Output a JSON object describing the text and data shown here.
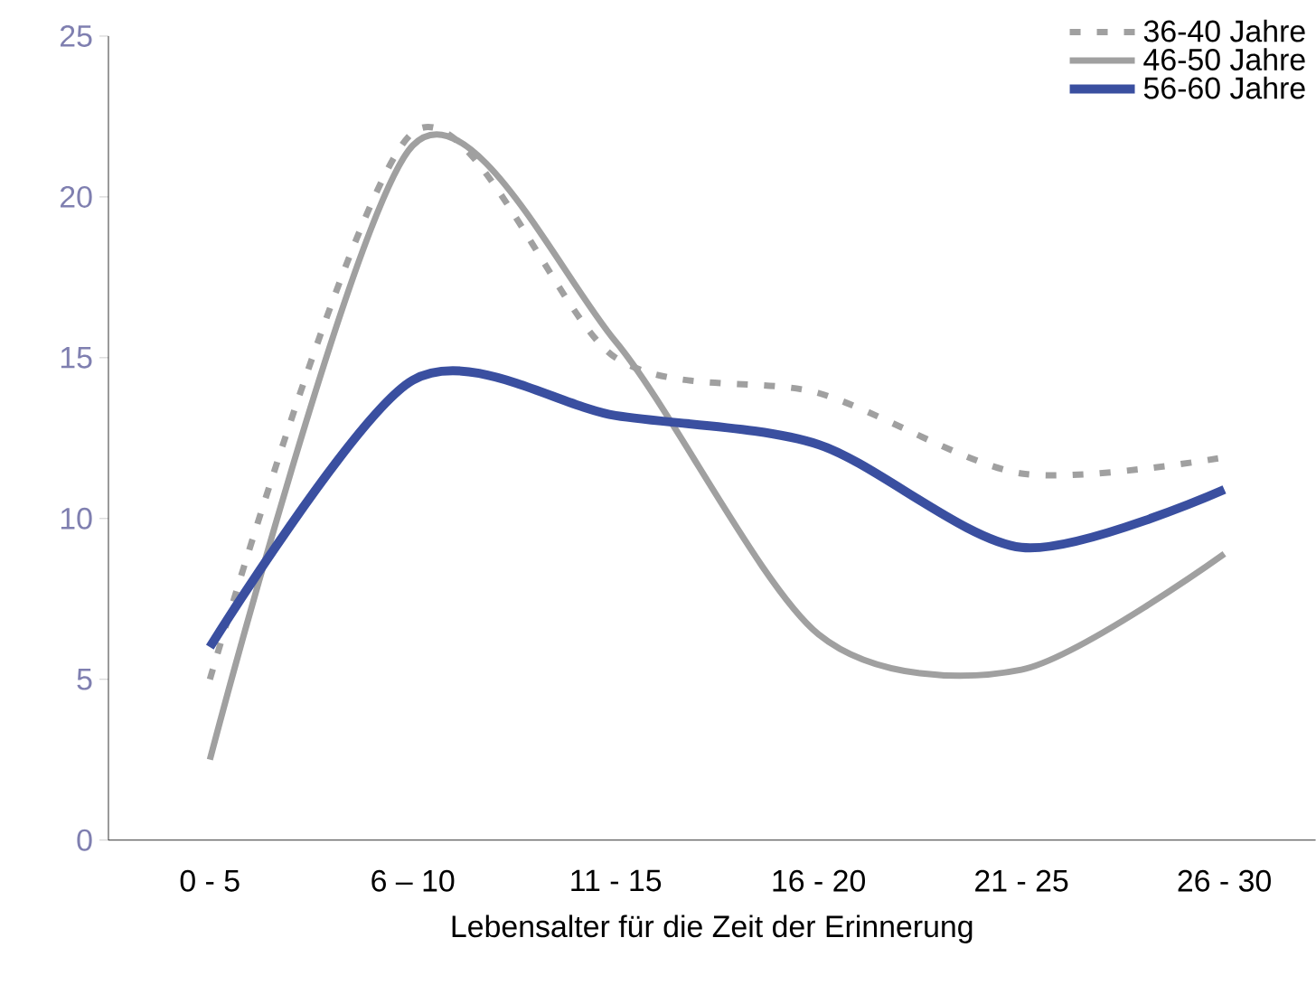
{
  "chart_data": {
    "type": "line",
    "xlabel": "Lebensalter für die Zeit der Erinnerung",
    "categories": [
      "0 - 5",
      "6 – 10",
      "11 - 15",
      "16 - 20",
      "21 - 25",
      "26 - 30"
    ],
    "ylim": [
      0,
      25
    ],
    "yticks": [
      0,
      5,
      10,
      15,
      20,
      25
    ],
    "grid": false,
    "legend": "top right",
    "marker": "none",
    "series": [
      {
        "name": "36-40 Jahre",
        "color": "#a0a0a0",
        "line_style": "dashed",
        "values": [
          5,
          22,
          15,
          13.9,
          11.4,
          11.9
        ]
      },
      {
        "name": "46-50 Jahre",
        "color": "#a0a0a0",
        "line_style": "solid",
        "values": [
          2.5,
          21.6,
          15.5,
          6.4,
          5.3,
          8.9
        ]
      },
      {
        "name": "56-60 Jahre",
        "color": "#3a4fa0",
        "line_style": "solid",
        "values": [
          6,
          14.3,
          13.2,
          12.3,
          9.1,
          10.9
        ]
      }
    ]
  }
}
